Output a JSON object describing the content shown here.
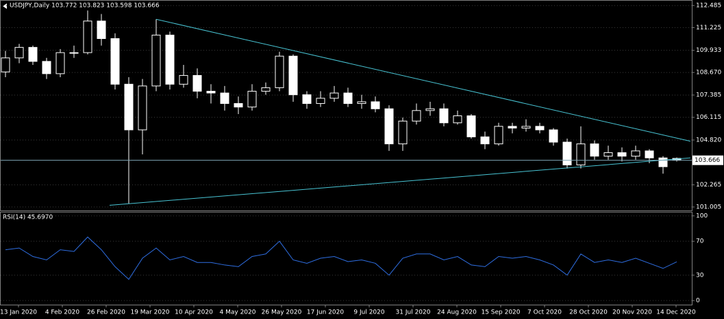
{
  "chart_data": [
    {
      "type": "candlestick",
      "title": "USDJPY,Daily  103.772 103.823 103.598 103.666",
      "open": [
        108.7,
        109.5,
        110.1,
        109.3,
        108.6,
        109.8,
        109.8,
        111.6,
        110.6,
        108.0,
        105.4,
        107.9,
        110.8,
        108.0,
        108.5,
        107.6,
        107.5,
        106.9,
        106.7,
        107.6,
        107.8,
        109.6,
        107.4,
        106.9,
        107.2,
        107.5,
        106.9,
        107.0,
        106.6,
        104.6,
        105.9,
        106.5,
        106.6,
        105.8,
        106.2,
        105.0,
        104.6,
        105.6,
        105.5,
        105.6,
        105.4,
        104.7,
        103.4,
        104.6,
        103.9,
        104.1,
        103.9,
        104.2,
        103.8,
        103.772
      ],
      "high": [
        109.9,
        110.3,
        110.2,
        109.5,
        110.0,
        110.2,
        112.2,
        112.0,
        110.9,
        108.4,
        108.3,
        111.7,
        111.0,
        109.1,
        108.9,
        108.0,
        107.9,
        107.3,
        108.0,
        108.1,
        109.85,
        109.7,
        107.6,
        107.6,
        107.9,
        107.8,
        107.4,
        107.3,
        106.8,
        106.1,
        106.9,
        107.0,
        106.9,
        106.5,
        106.3,
        105.3,
        105.8,
        105.8,
        106.0,
        105.8,
        105.5,
        104.9,
        105.6,
        104.8,
        104.5,
        104.4,
        104.5,
        104.3,
        103.9,
        103.823
      ],
      "low": [
        108.4,
        109.2,
        109.1,
        108.3,
        108.4,
        109.5,
        109.7,
        110.2,
        107.7,
        101.2,
        104.0,
        107.6,
        107.7,
        107.8,
        107.2,
        106.9,
        106.5,
        106.3,
        106.5,
        107.4,
        107.6,
        107.0,
        106.6,
        106.7,
        107.0,
        106.7,
        106.6,
        106.4,
        104.2,
        104.2,
        105.7,
        106.2,
        105.6,
        105.7,
        104.9,
        104.3,
        104.5,
        105.2,
        105.3,
        105.2,
        104.5,
        103.2,
        103.2,
        103.7,
        103.7,
        103.6,
        103.7,
        103.5,
        102.9,
        103.598
      ],
      "close": [
        109.5,
        110.1,
        109.3,
        108.6,
        109.8,
        109.8,
        111.6,
        110.6,
        108.0,
        105.4,
        107.9,
        110.8,
        108.0,
        108.5,
        107.6,
        107.5,
        106.9,
        106.7,
        107.6,
        107.8,
        109.6,
        107.4,
        106.9,
        107.2,
        107.5,
        106.9,
        107.0,
        106.6,
        104.6,
        105.9,
        106.5,
        106.6,
        105.8,
        106.2,
        105.0,
        104.6,
        105.6,
        105.5,
        105.6,
        105.4,
        104.7,
        103.4,
        104.6,
        103.9,
        104.1,
        103.9,
        104.2,
        103.8,
        103.3,
        103.666
      ],
      "current_price": 103.666,
      "trendlines": [
        {
          "from": [
            11,
            111.7
          ],
          "to": [
            50,
            104.75
          ]
        },
        {
          "from": [
            7.6,
            101.1
          ],
          "to": [
            50,
            103.8
          ]
        }
      ],
      "ylim": [
        100.81,
        112.76
      ],
      "yticks": [
        112.485,
        111.225,
        109.933,
        {
          "value": 108.67,
          "label": "108.670"
        },
        107.385,
        106.115,
        {
          "value": 104.82,
          "label": "104.820"
        },
        102.265,
        101.005
      ],
      "grid": true
    },
    {
      "type": "line",
      "title": "RSI(14) 45.6970",
      "color": "#2f6fe4",
      "values": [
        60,
        62,
        52,
        48,
        60,
        58,
        75,
        60,
        40,
        25,
        50,
        62,
        48,
        52,
        45,
        45,
        42,
        40,
        52,
        55,
        70,
        48,
        44,
        50,
        52,
        46,
        48,
        44,
        30,
        50,
        55,
        55,
        48,
        52,
        42,
        40,
        52,
        50,
        52,
        48,
        42,
        30,
        55,
        45,
        48,
        45,
        50,
        44,
        38,
        45.697
      ],
      "ylim": [
        -5.6,
        104.8
      ],
      "yticks": [
        100,
        70,
        30,
        0
      ],
      "x_labels": [
        "13 Jan 2020",
        "4 Feb 2020",
        "26 Feb 2020",
        "19 Mar 2020",
        "10 Apr 2020",
        "4 May 2020",
        "26 May 2020",
        "17 Jun 2020",
        "9 Jul 2020",
        "31 Jul 2020",
        "24 Aug 2020",
        "15 Sep 2020",
        "7 Oct 2020",
        "28 Oct 2020",
        "20 Nov 2020",
        "14 Dec 2020"
      ],
      "grid": true
    }
  ]
}
